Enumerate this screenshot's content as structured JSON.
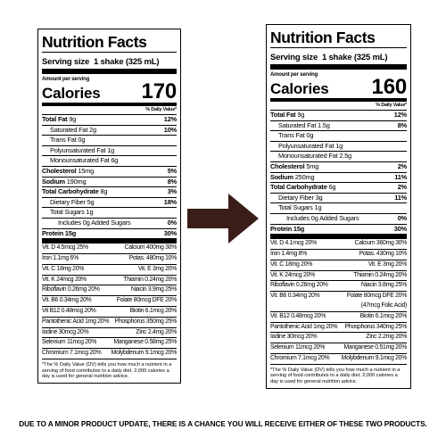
{
  "labels": [
    {
      "title": "Nutrition Facts",
      "serving_label": "Serving size",
      "serving_value": "1 shake (325 mL)",
      "amount_per_serving": "Amount per serving",
      "calories_label": "Calories",
      "calories_value": "170",
      "daily_value_header": "% Daily Value*",
      "nutrients": [
        {
          "name": "Total Fat",
          "amount": "9g",
          "dv": "12%"
        },
        {
          "name": "Saturated Fat",
          "amount": "2g",
          "dv": "10%"
        },
        {
          "name": "Trans Fat",
          "amount": "0g",
          "dv": null
        },
        {
          "name": "Polyunsaturated Fat",
          "amount": "1g",
          "dv": null
        },
        {
          "name": "Monounsaturated Fat",
          "amount": "6g",
          "dv": null
        },
        {
          "name": "Cholesterol",
          "amount": "15mg",
          "dv": "5%"
        },
        {
          "name": "Sodium",
          "amount": "190mg",
          "dv": "8%"
        },
        {
          "name": "Total Carbohydrate",
          "amount": "8g",
          "dv": "3%"
        },
        {
          "name": "Dietary Fiber",
          "amount": "5g",
          "dv": "18%"
        },
        {
          "name": "Total Sugars",
          "amount": "1g",
          "dv": null
        },
        {
          "name": "Includes",
          "amount": "0g Added Sugars",
          "dv": "0%"
        },
        {
          "name": "Protein",
          "amount": "15g",
          "dv": "30%"
        }
      ],
      "vitamins": [
        [
          "Vit. D 4.5mcg 25%",
          "Calcium 400mg 30%"
        ],
        [
          "Iron 1.1mg 6%",
          "Potas. 480mg 10%"
        ],
        [
          "Vit. C 18mg 20%",
          "Vit. E 3mg 20%"
        ],
        [
          "Vit. K 24mcg 20%",
          "Thiamin 0.24mg 20%"
        ],
        [
          "Riboflavin 0.26mg 20%",
          "Niacin 3.9mg 25%"
        ],
        [
          "Vit. B6 0.34mg 20%",
          "Folate 80mcg DFE 20%"
        ],
        [
          "Vit B12 0.48mcg 20%",
          "Biotin 6.1mcg 20%"
        ],
        [
          "Pantothenic Acid 1mg 20%",
          "Phosphorus 350mg 25%"
        ],
        [
          "Iodine 30mcg 20%",
          "Zinc 2.4mg 20%"
        ],
        [
          "Selenium 11mcg 20%",
          "Manganese 0.58mg 25%"
        ],
        [
          "Chromium 7.1mcg 20%",
          "Molybdenum 9.1mcg 20%"
        ]
      ],
      "footnote": "*The % Daily Value (DV) tells you how much a nutrient in a serving of food contributes to a daily diet. 2,000 calories a day is used for general nutrition advice."
    },
    {
      "title": "Nutrition Facts",
      "serving_label": "Serving size",
      "serving_value": "1 shake (325 mL)",
      "amount_per_serving": "Amount per serving",
      "calories_label": "Calories",
      "calories_value": "160",
      "daily_value_header": "% Daily Value*",
      "nutrients": [
        {
          "name": "Total Fat",
          "amount": "9g",
          "dv": "12%"
        },
        {
          "name": "Saturated Fat",
          "amount": "1.5g",
          "dv": "8%"
        },
        {
          "name": "Trans Fat",
          "amount": "0g",
          "dv": null
        },
        {
          "name": "Polyunsaturated Fat",
          "amount": "1g",
          "dv": null
        },
        {
          "name": "Monounsaturated Fat",
          "amount": "2.5g",
          "dv": null
        },
        {
          "name": "Cholesterol",
          "amount": "5mg",
          "dv": "2%"
        },
        {
          "name": "Sodium",
          "amount": "250mg",
          "dv": "11%"
        },
        {
          "name": "Total Carbohydrate",
          "amount": "6g",
          "dv": "2%"
        },
        {
          "name": "Dietary Fiber",
          "amount": "3g",
          "dv": "11%"
        },
        {
          "name": "Total Sugars",
          "amount": "1g",
          "dv": null
        },
        {
          "name": "Includes",
          "amount": "0g Added Sugars",
          "dv": "0%"
        },
        {
          "name": "Protein",
          "amount": "15g",
          "dv": "30%"
        }
      ],
      "vitamins": [
        [
          "Vit. D 4.1mcg 20%",
          "Calcium 360mg 30%"
        ],
        [
          "Iron 1.4mg 8%",
          "Potas. 430mg 10%"
        ],
        [
          "Vit. C 18mg 20%",
          "Vit. E 3mg 20%"
        ],
        [
          "Vit. K 24mcg 20%",
          "Thiamin 0.24mg 20%"
        ],
        [
          "Riboflavin 0.26mg 20%",
          "Niacin 3.8mg 25%"
        ],
        [
          "Vit. B6 0.34mg 20%",
          "Folate 80mcg DFE 20% (47mcg Folic Acid)"
        ],
        [
          "Vit. B12 0.48mcg 20%",
          "Biotin 6.1mcg 20%"
        ],
        [
          "Pantothenic Acid 1mg 20%",
          "Phosphorus 340mg 25%"
        ],
        [
          "Iodine 30mcg 20%",
          "Zinc 2.2mg 20%"
        ],
        [
          "Selenium 11mcg 20%",
          "Manganese 0.51mg 20%"
        ],
        [
          "Chromium 7.1mcg 20%",
          "Molybdenum 9.1mcg 20%"
        ]
      ],
      "footnote": "*The % Daily Value (DV) tells you how much a nutrient in a serving of food contributes to a daily diet. 2,000 calories a day is used for general nutrition advice."
    }
  ],
  "caption": "DUE TO A MINOR PRODUCT UPDATE, THERE IS A CHANCE YOU WILL RECEIVE EITHER OF THESE TWO PRODUCTS."
}
